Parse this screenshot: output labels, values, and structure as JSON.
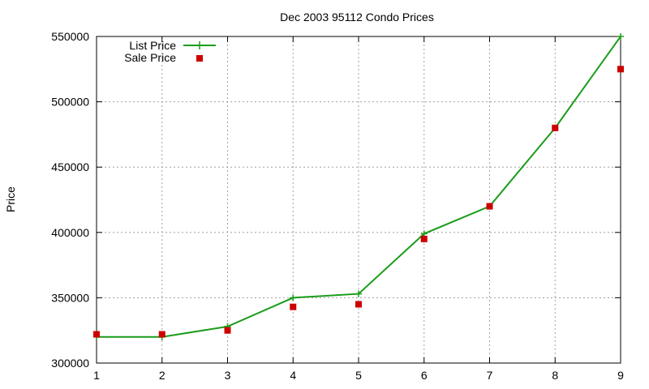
{
  "chart_data": {
    "type": "line",
    "title": "Dec 2003 95112 Condo Prices",
    "xlabel": "",
    "ylabel": "Price",
    "x": [
      1,
      2,
      3,
      4,
      5,
      6,
      7,
      8,
      9
    ],
    "xlim": [
      1,
      9
    ],
    "ylim": [
      300000,
      550000
    ],
    "xticks": [
      "1",
      "2",
      "3",
      "4",
      "5",
      "6",
      "7",
      "8",
      "9"
    ],
    "yticks": [
      "300000",
      "350000",
      "400000",
      "450000",
      "500000",
      "550000"
    ],
    "grid": true,
    "legend_position": "top-left",
    "series": [
      {
        "name": "List Price",
        "style": "line-with-plus-markers",
        "color": "#1a9c1a",
        "values": [
          320000,
          320000,
          328000,
          350000,
          353000,
          399000,
          420000,
          480000,
          550000
        ]
      },
      {
        "name": "Sale Price",
        "style": "square-markers",
        "color": "#cc0000",
        "values": [
          322000,
          322000,
          325000,
          343000,
          345000,
          395000,
          420000,
          480000,
          525000
        ]
      }
    ]
  }
}
